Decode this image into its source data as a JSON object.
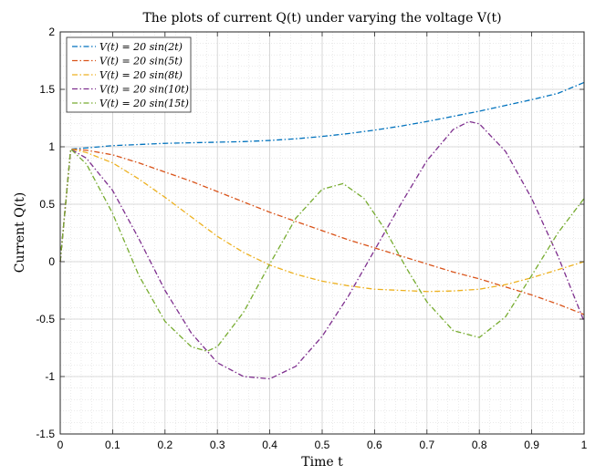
{
  "chart_data": {
    "type": "line",
    "title": "The plots of current Q(t) under varying the voltage V(t)",
    "xlabel": "Time t",
    "ylabel": "Current Q(t)",
    "xlim": [
      0,
      1
    ],
    "ylim": [
      -1.5,
      2
    ],
    "xticks": [
      0,
      0.1,
      0.2,
      0.3,
      0.4,
      0.5,
      0.6,
      0.7,
      0.8,
      0.9,
      1
    ],
    "xtick_labels": [
      "0",
      "0.1",
      "0.2",
      "0.3",
      "0.4",
      "0.5",
      "0.6",
      "0.7",
      "0.8",
      "0.9",
      "1"
    ],
    "yticks": [
      -1.5,
      -1,
      -0.5,
      0,
      0.5,
      1,
      1.5,
      2
    ],
    "ytick_labels": [
      "-1.5",
      "-1",
      "-0.5",
      "0",
      "0.5",
      "1",
      "1.5",
      "2"
    ],
    "grid": true,
    "legend_position": "top-left",
    "series": [
      {
        "name": "V(t) = 20 sin(2t)",
        "color": "#0072BD",
        "x": [
          0,
          0.02,
          0.05,
          0.1,
          0.15,
          0.2,
          0.25,
          0.3,
          0.35,
          0.4,
          0.45,
          0.5,
          0.55,
          0.6,
          0.65,
          0.7,
          0.75,
          0.8,
          0.85,
          0.9,
          0.95,
          1.0
        ],
        "y": [
          0,
          0.98,
          0.99,
          1.01,
          1.02,
          1.03,
          1.035,
          1.04,
          1.045,
          1.055,
          1.07,
          1.09,
          1.115,
          1.145,
          1.18,
          1.22,
          1.265,
          1.31,
          1.36,
          1.41,
          1.465,
          1.56
        ]
      },
      {
        "name": "V(t) = 20 sin(5t)",
        "color": "#D95319",
        "x": [
          0,
          0.02,
          0.05,
          0.1,
          0.15,
          0.2,
          0.25,
          0.3,
          0.35,
          0.4,
          0.45,
          0.5,
          0.55,
          0.6,
          0.65,
          0.7,
          0.75,
          0.8,
          0.85,
          0.9,
          0.95,
          1.0
        ],
        "y": [
          0,
          0.98,
          0.97,
          0.93,
          0.86,
          0.78,
          0.7,
          0.61,
          0.52,
          0.43,
          0.35,
          0.27,
          0.19,
          0.12,
          0.05,
          -0.02,
          -0.09,
          -0.15,
          -0.22,
          -0.29,
          -0.37,
          -0.46
        ]
      },
      {
        "name": "V(t) = 20 sin(8t)",
        "color": "#EDB120",
        "x": [
          0,
          0.02,
          0.05,
          0.1,
          0.15,
          0.2,
          0.25,
          0.3,
          0.35,
          0.4,
          0.45,
          0.5,
          0.55,
          0.6,
          0.65,
          0.7,
          0.75,
          0.8,
          0.85,
          0.9,
          0.95,
          1.0
        ],
        "y": [
          0,
          0.98,
          0.95,
          0.86,
          0.72,
          0.56,
          0.39,
          0.22,
          0.08,
          -0.03,
          -0.11,
          -0.17,
          -0.21,
          -0.24,
          -0.25,
          -0.26,
          -0.255,
          -0.24,
          -0.2,
          -0.14,
          -0.07,
          0.0
        ]
      },
      {
        "name": "V(t) = 20 sin(10t)",
        "color": "#7E2F8E",
        "x": [
          0,
          0.02,
          0.05,
          0.1,
          0.15,
          0.2,
          0.25,
          0.3,
          0.35,
          0.4,
          0.45,
          0.5,
          0.55,
          0.6,
          0.65,
          0.7,
          0.75,
          0.78,
          0.8,
          0.85,
          0.9,
          0.95,
          1.0
        ],
        "y": [
          0,
          0.98,
          0.9,
          0.62,
          0.2,
          -0.25,
          -0.62,
          -0.88,
          -1.0,
          -1.02,
          -0.91,
          -0.65,
          -0.3,
          0.1,
          0.5,
          0.88,
          1.15,
          1.22,
          1.2,
          0.96,
          0.55,
          0.05,
          -0.52
        ]
      },
      {
        "name": "V(t) = 20 sin(15t)",
        "color": "#77AC30",
        "x": [
          0,
          0.02,
          0.05,
          0.1,
          0.15,
          0.2,
          0.25,
          0.28,
          0.3,
          0.35,
          0.4,
          0.45,
          0.5,
          0.54,
          0.58,
          0.62,
          0.66,
          0.7,
          0.75,
          0.8,
          0.85,
          0.9,
          0.95,
          1.0
        ],
        "y": [
          0,
          0.98,
          0.85,
          0.42,
          -0.12,
          -0.52,
          -0.74,
          -0.78,
          -0.74,
          -0.44,
          -0.02,
          0.38,
          0.63,
          0.68,
          0.55,
          0.28,
          -0.05,
          -0.35,
          -0.6,
          -0.66,
          -0.48,
          -0.12,
          0.25,
          0.55
        ]
      }
    ]
  }
}
